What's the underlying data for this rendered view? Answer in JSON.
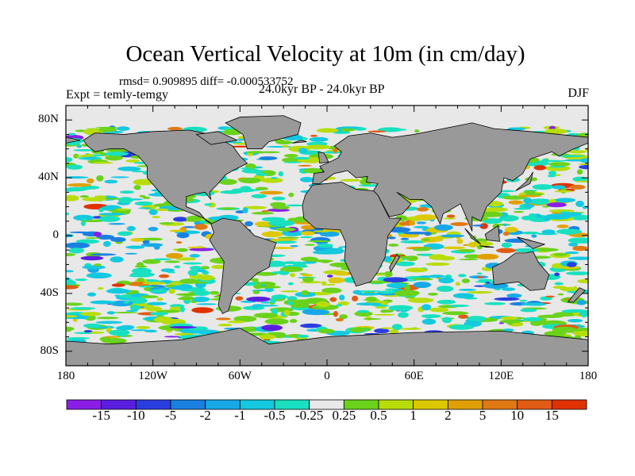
{
  "title": "Ocean Vertical Velocity at 10m (in cm/day)",
  "stats": "rmsd= 0.909895 diff= -0.000533752",
  "expt": "Expt = temly-temgy",
  "period": "24.0kyr BP - 24.0kyr BP",
  "season": "DJF",
  "lat_labels": [
    "80N",
    "40N",
    "0",
    "40S",
    "80S"
  ],
  "lat_values": [
    80,
    40,
    0,
    -40,
    -80
  ],
  "lon_labels": [
    "180",
    "120W",
    "60W",
    "0",
    "60E",
    "120E",
    "180"
  ],
  "lon_values": [
    -180,
    -120,
    -60,
    0,
    60,
    120,
    180
  ],
  "colorbar": {
    "labels": [
      "-15",
      "-10",
      "-5",
      "-2",
      "-1",
      "-0.5",
      "-0.25",
      "0.25",
      "0.5",
      "1",
      "2",
      "5",
      "10",
      "15"
    ],
    "colors": [
      "#8a1ee6",
      "#5a1ee0",
      "#2a3ee0",
      "#1a80e0",
      "#18a8e6",
      "#14c8e0",
      "#18e0c0",
      "#e8e8e8",
      "#6ad21a",
      "#b8dc0a",
      "#dcc800",
      "#e0a000",
      "#e07814",
      "#e05c14",
      "#e03200"
    ]
  },
  "land_color": "#999999",
  "ocean_color": "#e8e8e8"
}
